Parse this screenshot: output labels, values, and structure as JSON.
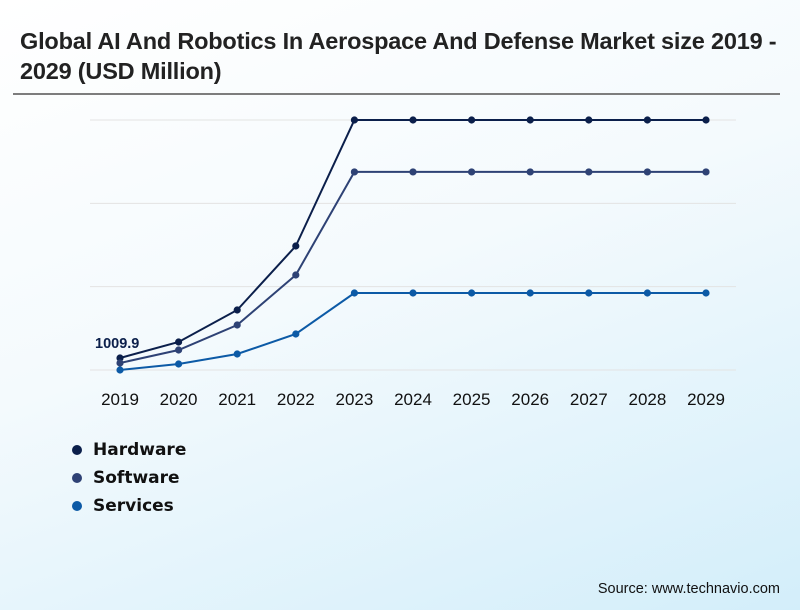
{
  "header": {
    "title": "Global AI And Robotics In Aerospace And Defense Market size 2019 - 2029 (USD Million)"
  },
  "source": "Source: www.technavio.com",
  "chart_data": {
    "type": "line",
    "title": "Global AI And Robotics In Aerospace And Defense Market size 2019 - 2029 (USD Million)",
    "xlabel": "",
    "ylabel": "",
    "x": [
      "2019",
      "2020",
      "2021",
      "2022",
      "2023",
      "2024",
      "2025",
      "2026",
      "2027",
      "2028",
      "2029"
    ],
    "ylim": [
      0,
      21040
    ],
    "grid": true,
    "legend_position": "bottom-left",
    "annotations": [
      {
        "series": "Hardware",
        "x": "2019",
        "text": "1009.9"
      }
    ],
    "series": [
      {
        "name": "Hardware",
        "color": "#0b1f4b",
        "values": [
          1009.9,
          2356,
          5050,
          10436,
          21040,
          21040,
          21040,
          21040,
          21040,
          21040,
          21040
        ]
      },
      {
        "name": "Software",
        "color": "#2e4275",
        "values": [
          589,
          1683,
          3787,
          7994,
          16668,
          16668,
          16668,
          16668,
          16668,
          16668,
          16668
        ]
      },
      {
        "name": "Services",
        "color": "#0c5aa6",
        "values": [
          0,
          505,
          1346,
          3030,
          6480,
          6480,
          6480,
          6480,
          6480,
          6480,
          6480
        ]
      }
    ]
  }
}
